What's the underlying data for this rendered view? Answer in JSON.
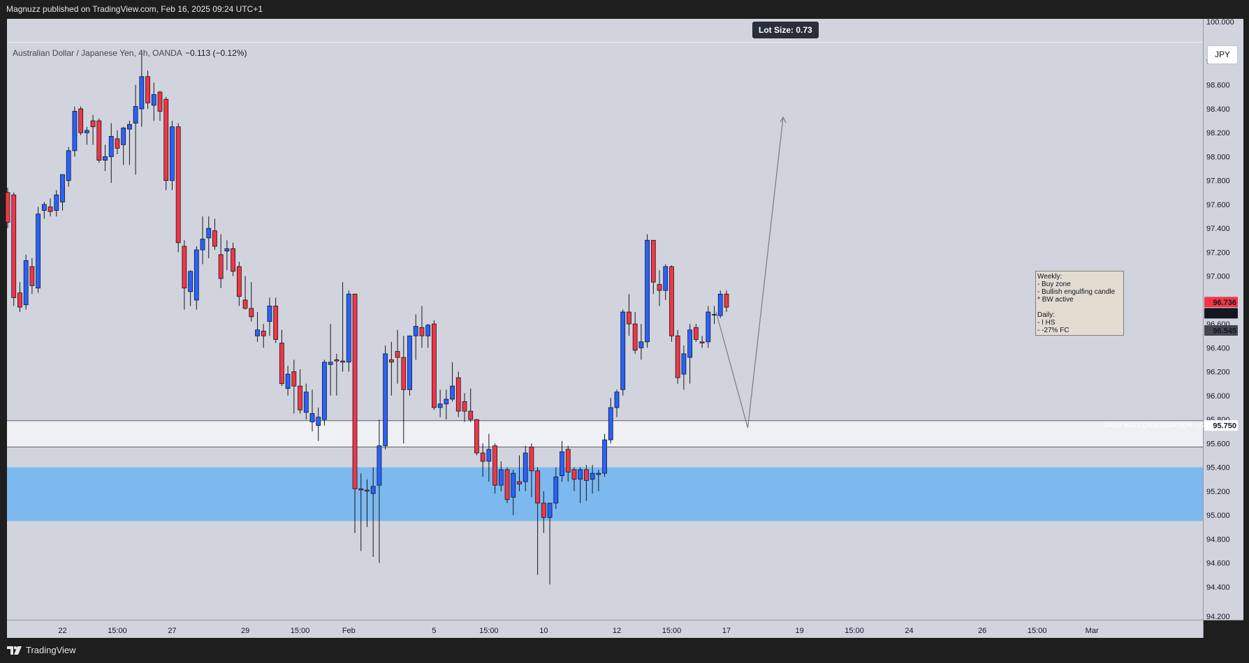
{
  "header": {
    "published_text": "Magnuzz published on TradingView.com, Feb 16, 2025 09:24 UTC+1"
  },
  "footer": {
    "brand": "TradingView"
  },
  "chart_header": {
    "symbol": "Australian Dollar / Japanese Yen, 4h, OANDA",
    "change": "−0.113 (−0.12%)"
  },
  "lot_size_label": "Lot Size: 0.73",
  "currency_button": "JPY",
  "zone_label": "DAILY BIG CONSOLIDATION · 22%",
  "note": {
    "text": "Weekly:\n- Buy zone\n- Bullish engulfing candle\n* BW active\n\nDaily:\n- I HS\n- -27% FC"
  },
  "colors": {
    "bull": "#2962ff",
    "bear": "#f23645",
    "background": "#d1d4dc",
    "demand_zone": "#7cb9ee",
    "consolidation_zone": "#eef0f4"
  },
  "chart_data": {
    "type": "candlestick",
    "title": "Australian Dollar / Japanese Yen, 4h, OANDA",
    "xlabel": "",
    "ylabel": "",
    "ylim": [
      94.2,
      100.0
    ],
    "y_ticks": [
      "100.000",
      "98.800",
      "98.600",
      "98.400",
      "98.200",
      "98.000",
      "97.800",
      "97.600",
      "97.400",
      "97.200",
      "97.000",
      "96.800",
      "96.600",
      "96.400",
      "96.200",
      "96.000",
      "95.800",
      "95.600",
      "95.400",
      "95.200",
      "95.000",
      "94.800",
      "94.600",
      "94.400",
      "94.200"
    ],
    "x_ticks": [
      {
        "label": "22",
        "bar": 9
      },
      {
        "label": "15:00",
        "bar": 18
      },
      {
        "label": "27",
        "bar": 27
      },
      {
        "label": "29",
        "bar": 39
      },
      {
        "label": "15:00",
        "bar": 48
      },
      {
        "label": "Feb",
        "bar": 56
      },
      {
        "label": "5",
        "bar": 70
      },
      {
        "label": "15:00",
        "bar": 79
      },
      {
        "label": "10",
        "bar": 88
      },
      {
        "label": "12",
        "bar": 100
      },
      {
        "label": "15:00",
        "bar": 109
      },
      {
        "label": "17",
        "bar": 118
      },
      {
        "label": "19",
        "bar": 130
      },
      {
        "label": "15:00",
        "bar": 139
      },
      {
        "label": "24",
        "bar": 148
      },
      {
        "label": "26",
        "bar": 160
      },
      {
        "label": "15:00",
        "bar": 169
      },
      {
        "label": "Mar",
        "bar": 178
      }
    ],
    "candles": [
      [
        97.7,
        97.74,
        97.4,
        97.45
      ],
      [
        97.68,
        97.7,
        96.75,
        96.82
      ],
      [
        96.86,
        96.95,
        96.7,
        96.74
      ],
      [
        96.76,
        97.18,
        96.72,
        97.13
      ],
      [
        97.08,
        97.15,
        96.85,
        96.92
      ],
      [
        96.9,
        97.58,
        96.86,
        97.52
      ],
      [
        97.55,
        97.62,
        97.48,
        97.6
      ],
      [
        97.58,
        97.65,
        97.5,
        97.54
      ],
      [
        97.55,
        97.72,
        97.5,
        97.68
      ],
      [
        97.62,
        97.85,
        97.55,
        97.85
      ],
      [
        97.8,
        98.08,
        97.75,
        98.05
      ],
      [
        98.05,
        98.42,
        98.0,
        98.38
      ],
      [
        98.4,
        98.42,
        98.18,
        98.2
      ],
      [
        98.2,
        98.25,
        98.1,
        98.22
      ],
      [
        98.3,
        98.35,
        98.1,
        98.25
      ],
      [
        98.3,
        98.32,
        97.95,
        97.97
      ],
      [
        97.97,
        98.1,
        97.88,
        98.0
      ],
      [
        98.0,
        98.28,
        97.78,
        98.17
      ],
      [
        98.15,
        98.22,
        98.02,
        98.07
      ],
      [
        98.1,
        98.25,
        97.93,
        98.24
      ],
      [
        98.23,
        98.3,
        97.93,
        98.27
      ],
      [
        98.28,
        98.6,
        97.85,
        98.42
      ],
      [
        98.4,
        98.88,
        98.25,
        98.67
      ],
      [
        98.67,
        98.72,
        98.4,
        98.45
      ],
      [
        98.43,
        98.62,
        98.3,
        98.52
      ],
      [
        98.54,
        98.55,
        98.3,
        98.38
      ],
      [
        98.48,
        98.5,
        97.72,
        97.8
      ],
      [
        97.8,
        98.3,
        97.72,
        98.25
      ],
      [
        98.25,
        98.28,
        97.2,
        97.28
      ],
      [
        97.25,
        97.3,
        96.72,
        96.9
      ],
      [
        96.87,
        97.05,
        96.75,
        97.04
      ],
      [
        96.8,
        97.25,
        96.72,
        97.22
      ],
      [
        97.22,
        97.5,
        97.1,
        97.31
      ],
      [
        97.32,
        97.5,
        97.15,
        97.4
      ],
      [
        97.38,
        97.48,
        97.22,
        97.25
      ],
      [
        97.18,
        97.35,
        96.9,
        96.98
      ],
      [
        97.21,
        97.3,
        97.05,
        97.23
      ],
      [
        97.23,
        97.28,
        97.0,
        97.04
      ],
      [
        97.08,
        97.12,
        96.75,
        96.83
      ],
      [
        96.8,
        97.0,
        96.72,
        96.73
      ],
      [
        96.73,
        96.95,
        96.62,
        96.66
      ],
      [
        96.5,
        96.7,
        96.45,
        96.55
      ],
      [
        96.54,
        96.6,
        96.4,
        96.5
      ],
      [
        96.62,
        96.82,
        96.5,
        96.75
      ],
      [
        96.75,
        96.82,
        96.44,
        96.47
      ],
      [
        96.44,
        96.55,
        96.08,
        96.1
      ],
      [
        96.06,
        96.25,
        96.0,
        96.18
      ],
      [
        96.2,
        96.3,
        95.85,
        96.08
      ],
      [
        96.08,
        96.22,
        95.85,
        95.88
      ],
      [
        95.86,
        96.1,
        95.8,
        96.03
      ],
      [
        95.78,
        96.05,
        95.7,
        95.85
      ],
      [
        95.75,
        95.9,
        95.62,
        95.82
      ],
      [
        95.8,
        96.3,
        95.75,
        96.28
      ],
      [
        96.26,
        96.6,
        96.0,
        96.28
      ],
      [
        96.3,
        96.35,
        96.0,
        96.29
      ],
      [
        96.29,
        96.95,
        96.2,
        96.28
      ],
      [
        96.28,
        96.88,
        96.2,
        96.85
      ],
      [
        96.85,
        96.85,
        94.85,
        95.22
      ],
      [
        95.22,
        95.35,
        94.7,
        95.21
      ],
      [
        95.21,
        95.3,
        94.9,
        95.2
      ],
      [
        95.18,
        95.4,
        94.65,
        95.24
      ],
      [
        95.25,
        95.8,
        94.6,
        95.58
      ],
      [
        95.58,
        96.42,
        95.55,
        96.35
      ],
      [
        96.3,
        96.45,
        96.0,
        96.28
      ],
      [
        96.37,
        96.55,
        96.1,
        96.32
      ],
      [
        96.32,
        96.5,
        95.6,
        96.05
      ],
      [
        96.05,
        96.45,
        96.0,
        96.5
      ],
      [
        96.5,
        96.68,
        96.3,
        96.58
      ],
      [
        96.57,
        96.75,
        96.4,
        96.5
      ],
      [
        96.5,
        96.6,
        96.4,
        96.59
      ],
      [
        96.6,
        96.63,
        95.88,
        95.9
      ],
      [
        95.9,
        96.05,
        95.82,
        95.93
      ],
      [
        95.93,
        96.05,
        95.8,
        95.97
      ],
      [
        95.97,
        96.28,
        95.95,
        96.08
      ],
      [
        96.15,
        96.2,
        95.82,
        95.87
      ],
      [
        95.95,
        96.02,
        95.78,
        95.87
      ],
      [
        95.87,
        96.06,
        95.78,
        95.8
      ],
      [
        95.8,
        95.8,
        95.5,
        95.52
      ],
      [
        95.52,
        95.6,
        95.32,
        95.45
      ],
      [
        95.45,
        95.68,
        95.28,
        95.55
      ],
      [
        95.58,
        95.6,
        95.18,
        95.25
      ],
      [
        95.25,
        95.45,
        95.2,
        95.38
      ],
      [
        95.38,
        95.4,
        95.1,
        95.13
      ],
      [
        95.15,
        95.38,
        95.0,
        95.35
      ],
      [
        95.28,
        95.5,
        95.2,
        95.26
      ],
      [
        95.28,
        95.58,
        95.2,
        95.52
      ],
      [
        95.57,
        95.6,
        95.15,
        95.37
      ],
      [
        95.37,
        95.4,
        94.5,
        95.1
      ],
      [
        95.1,
        95.2,
        94.85,
        94.98
      ],
      [
        94.98,
        95.1,
        94.42,
        95.1
      ],
      [
        95.1,
        95.4,
        95.05,
        95.32
      ],
      [
        95.33,
        95.62,
        95.28,
        95.53
      ],
      [
        95.55,
        95.58,
        95.28,
        95.36
      ],
      [
        95.38,
        95.4,
        95.2,
        95.3
      ],
      [
        95.3,
        95.4,
        95.1,
        95.38
      ],
      [
        95.38,
        95.42,
        95.12,
        95.29
      ],
      [
        95.3,
        95.42,
        95.18,
        95.35
      ],
      [
        95.34,
        95.38,
        95.2,
        95.35
      ],
      [
        95.35,
        95.68,
        95.32,
        95.63
      ],
      [
        95.63,
        95.98,
        95.6,
        95.9
      ],
      [
        95.9,
        96.05,
        95.82,
        96.03
      ],
      [
        96.05,
        96.72,
        96.0,
        96.7
      ],
      [
        96.7,
        96.85,
        96.5,
        96.6
      ],
      [
        96.6,
        96.7,
        96.35,
        96.38
      ],
      [
        96.4,
        96.6,
        96.3,
        96.45
      ],
      [
        96.45,
        97.35,
        96.4,
        97.3
      ],
      [
        97.3,
        97.3,
        96.85,
        96.95
      ],
      [
        96.93,
        97.05,
        96.75,
        96.88
      ],
      [
        96.88,
        97.1,
        96.8,
        97.08
      ],
      [
        97.08,
        97.09,
        96.45,
        96.5
      ],
      [
        96.5,
        96.55,
        96.1,
        96.15
      ],
      [
        96.18,
        96.42,
        96.05,
        96.35
      ],
      [
        96.32,
        96.6,
        96.1,
        96.55
      ],
      [
        96.57,
        96.6,
        96.45,
        96.47
      ],
      [
        96.45,
        96.5,
        96.4,
        96.44
      ],
      [
        96.45,
        96.75,
        96.4,
        96.7
      ],
      [
        96.68,
        96.75,
        96.6,
        96.68
      ],
      [
        96.67,
        96.88,
        96.65,
        96.85
      ],
      [
        96.85,
        96.88,
        96.7,
        96.74
      ]
    ],
    "price_labels": [
      {
        "value": "96.736",
        "y": 96.736,
        "color": "#f23645"
      },
      {
        "value": "96.736",
        "y": 96.736,
        "color": "#131722"
      },
      {
        "value": "96.545",
        "y": 96.545,
        "color": "#434651"
      },
      {
        "value": "95.750",
        "y": 95.75,
        "color": "#ffffff"
      }
    ],
    "zones": [
      {
        "name": "consolidation",
        "y_top": 95.79,
        "y_bottom": 95.57
      },
      {
        "name": "demand",
        "y_top": 95.4,
        "y_bottom": 94.95
      }
    ],
    "projection": [
      {
        "bar": 116.3,
        "y": 96.7
      },
      {
        "bar": 121.5,
        "y": 95.73
      },
      {
        "bar": 127.3,
        "y": 98.33
      }
    ]
  }
}
